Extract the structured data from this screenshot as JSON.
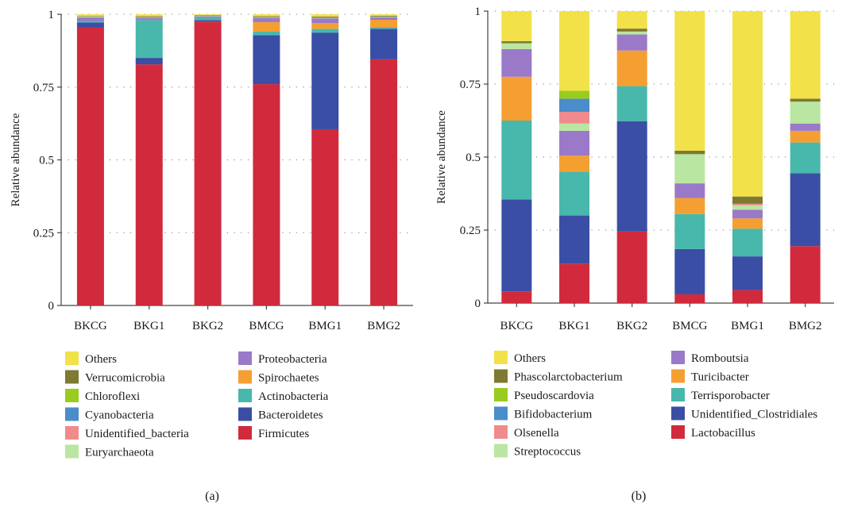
{
  "figure": {
    "panel_labels": [
      "(a)",
      "(b)"
    ]
  },
  "chart_data": [
    {
      "type": "bar",
      "stacked": true,
      "panel": "(a)",
      "ylabel": "Relative abundance",
      "ylim": [
        0,
        1
      ],
      "yticks": [
        0,
        0.25,
        0.5,
        0.75,
        1
      ],
      "ytick_labels": [
        "0",
        "0.25",
        "0.5",
        "0.75",
        "1"
      ],
      "grid": "dotted horizontal",
      "legend_position": "bottom, two columns",
      "categories": [
        "BKCG",
        "BKG1",
        "BKG2",
        "BMCG",
        "BMG1",
        "BMG2"
      ],
      "series": [
        {
          "name": "Firmicutes",
          "color": "#d12a3c",
          "values": [
            0.955,
            0.828,
            0.975,
            0.76,
            0.605,
            0.845
          ]
        },
        {
          "name": "Bacteroidetes",
          "color": "#3a4ea6",
          "values": [
            0.017,
            0.022,
            0.005,
            0.168,
            0.332,
            0.105
          ]
        },
        {
          "name": "Actinobacteria",
          "color": "#47b8ab",
          "values": [
            0.005,
            0.13,
            0.008,
            0.012,
            0.013,
            0.006
          ]
        },
        {
          "name": "Spirochaetes",
          "color": "#f59f32",
          "values": [
            0.0,
            0.0,
            0.0,
            0.033,
            0.02,
            0.025
          ]
        },
        {
          "name": "Proteobacteria",
          "color": "#9a79c9",
          "values": [
            0.012,
            0.008,
            0.005,
            0.015,
            0.016,
            0.009
          ]
        },
        {
          "name": "Euryarchaeota",
          "color": "#b9e6a0",
          "values": [
            0.003,
            0.002,
            0.002,
            0.002,
            0.002,
            0.002
          ]
        },
        {
          "name": "Unidentified_bacteria",
          "color": "#f08a8c",
          "values": [
            0.0,
            0.0,
            0.0,
            0.0,
            0.0,
            0.0
          ]
        },
        {
          "name": "Cyanobacteria",
          "color": "#4b8ccb",
          "values": [
            0.0,
            0.0,
            0.0,
            0.0,
            0.0,
            0.0
          ]
        },
        {
          "name": "Chloroflexi",
          "color": "#99cc1f",
          "values": [
            0.0,
            0.0,
            0.0,
            0.0,
            0.0,
            0.0
          ]
        },
        {
          "name": "Verrucomicrobia",
          "color": "#7d7a32",
          "values": [
            0.002,
            0.003,
            0.002,
            0.003,
            0.004,
            0.003
          ]
        },
        {
          "name": "Others",
          "color": "#f2e148",
          "values": [
            0.006,
            0.007,
            0.003,
            0.007,
            0.008,
            0.005
          ]
        }
      ],
      "legend": {
        "left": [
          "Others",
          "Verrucomicrobia",
          "Chloroflexi",
          "Cyanobacteria",
          "Unidentified_bacteria",
          "Euryarchaeota"
        ],
        "right": [
          "Proteobacteria",
          "Spirochaetes",
          "Actinobacteria",
          "Bacteroidetes",
          "Firmicutes"
        ]
      }
    },
    {
      "type": "bar",
      "stacked": true,
      "panel": "(b)",
      "ylabel": "Relative abundance",
      "ylim": [
        0,
        1
      ],
      "yticks": [
        0,
        0.25,
        0.5,
        0.75,
        1
      ],
      "ytick_labels": [
        "0",
        "0.25",
        "0.5",
        "0.75",
        "1"
      ],
      "grid": "dotted horizontal",
      "legend_position": "bottom, two columns",
      "categories": [
        "BKCG",
        "BKG1",
        "BKG2",
        "BMCG",
        "BMG1",
        "BMG2"
      ],
      "series": [
        {
          "name": "Lactobacillus",
          "color": "#d12a3c",
          "values": [
            0.04,
            0.135,
            0.245,
            0.03,
            0.045,
            0.195
          ]
        },
        {
          "name": "Unidentified_Clostridiales",
          "color": "#3a4ea6",
          "values": [
            0.315,
            0.165,
            0.378,
            0.155,
            0.115,
            0.25
          ]
        },
        {
          "name": "Terrisporobacter",
          "color": "#47b8ab",
          "values": [
            0.27,
            0.15,
            0.12,
            0.12,
            0.095,
            0.105
          ]
        },
        {
          "name": "Turicibacter",
          "color": "#f59f32",
          "values": [
            0.15,
            0.055,
            0.122,
            0.055,
            0.035,
            0.04
          ]
        },
        {
          "name": "Romboutsia",
          "color": "#9a79c9",
          "values": [
            0.095,
            0.085,
            0.055,
            0.05,
            0.03,
            0.025
          ]
        },
        {
          "name": "Streptococcus",
          "color": "#b9e6a0",
          "values": [
            0.02,
            0.025,
            0.01,
            0.1,
            0.015,
            0.075
          ]
        },
        {
          "name": "Olsenella",
          "color": "#f08a8c",
          "values": [
            0.0,
            0.04,
            0.0,
            0.0,
            0.005,
            0.0
          ]
        },
        {
          "name": "Bifidobacterium",
          "color": "#4b8ccb",
          "values": [
            0.0,
            0.045,
            0.0,
            0.0,
            0.0,
            0.0
          ]
        },
        {
          "name": "Pseudoscardovia",
          "color": "#99cc1f",
          "values": [
            0.0,
            0.027,
            0.0,
            0.0,
            0.0,
            0.0
          ]
        },
        {
          "name": "Phascolarctobacterium",
          "color": "#7d7a32",
          "values": [
            0.007,
            0.0,
            0.01,
            0.012,
            0.025,
            0.01
          ]
        },
        {
          "name": "Others",
          "color": "#f2e148",
          "values": [
            0.103,
            0.273,
            0.06,
            0.478,
            0.635,
            0.3
          ]
        }
      ],
      "legend": {
        "left": [
          "Others",
          "Phascolarctobacterium",
          "Pseudoscardovia",
          "Bifidobacterium",
          "Olsenella",
          "Streptococcus"
        ],
        "right": [
          "Romboutsia",
          "Turicibacter",
          "Terrisporobacter",
          "Unidentified_Clostridiales",
          "Lactobacillus"
        ]
      }
    }
  ]
}
